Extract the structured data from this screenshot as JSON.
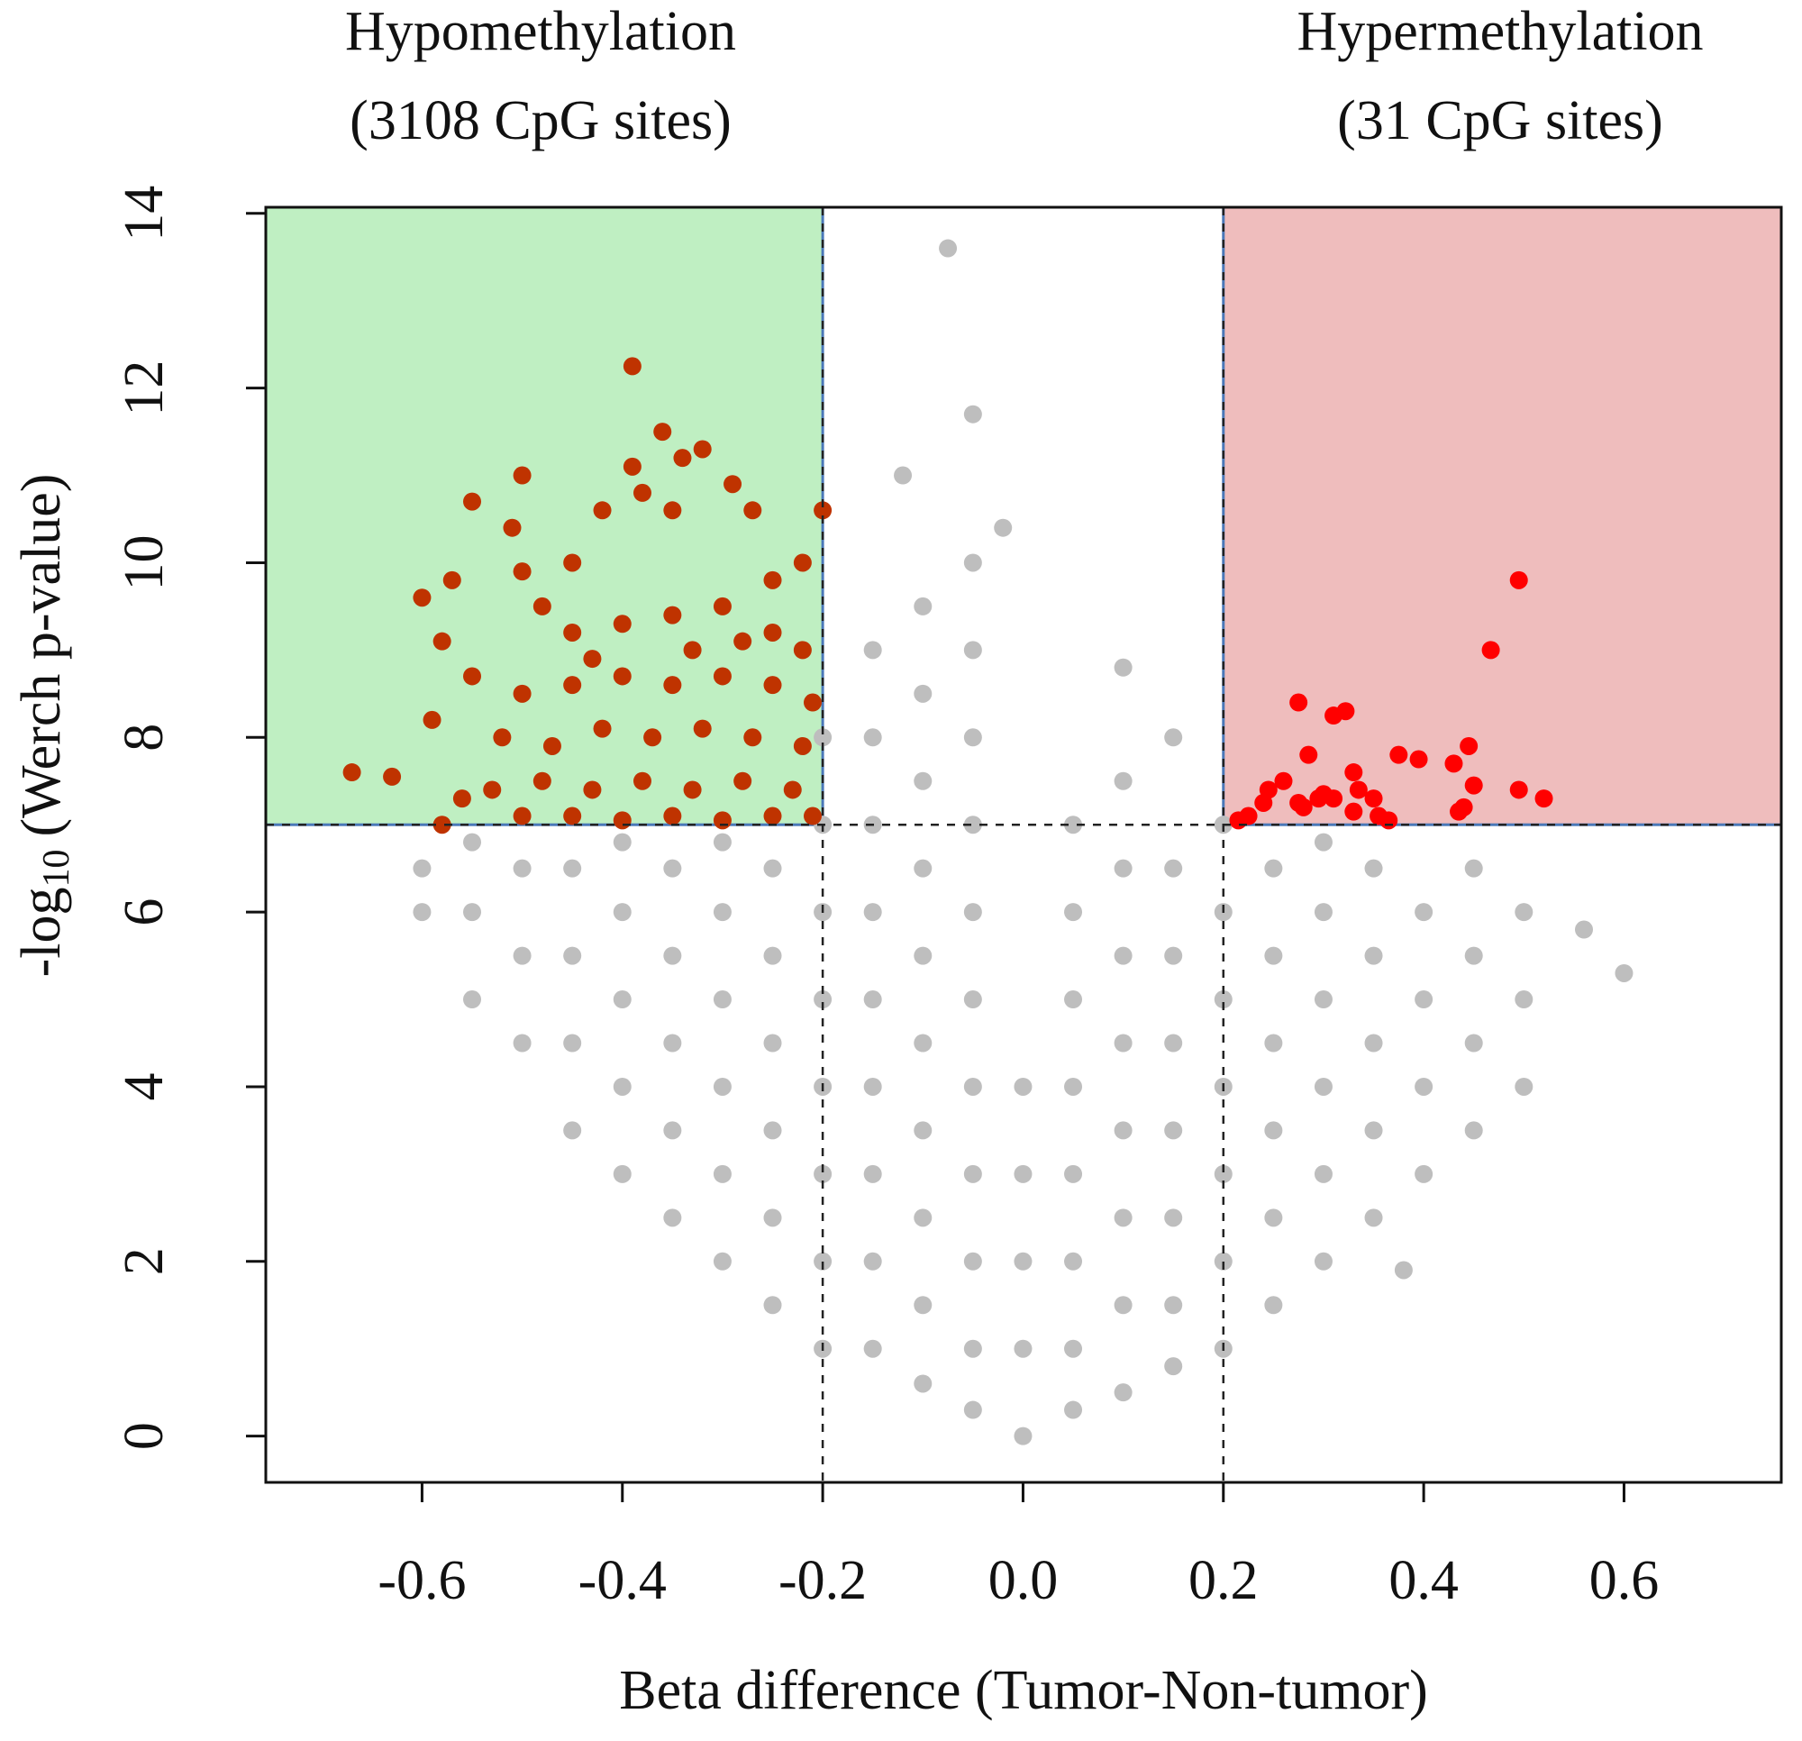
{
  "chart_data": {
    "type": "scatter",
    "annotations": [
      "Hypomethylation",
      "(3108 CpG sites)",
      "Hypermethylation",
      "(31 CpG sites)"
    ],
    "x_label": "Beta difference (Tumor-Non-tumor)",
    "y_label": [
      "-log",
      "10",
      "(Werch p-value)"
    ],
    "xlim": [
      -0.756,
      0.757
    ],
    "ylim": [
      -0.53,
      14.07
    ],
    "xticks": [
      -0.6,
      -0.4,
      -0.2,
      {
        "value": 0,
        "label": "0.0"
      },
      0.2,
      0.4,
      0.6
    ],
    "yticks": [
      0,
      2,
      4,
      6,
      8,
      10,
      12,
      14
    ],
    "thresholds": {
      "x": [
        -0.2,
        0.2
      ],
      "y": 7
    },
    "regions": [
      {
        "xlim": [
          -0.756,
          -0.2
        ],
        "ylim": [
          7,
          14.07
        ],
        "color": "#bfefc2"
      },
      {
        "xlim": [
          0.2,
          0.757
        ],
        "ylim": [
          7,
          14.07
        ],
        "color": "#efbdbd"
      }
    ],
    "region_edge_color": "#4a78b8",
    "series": [
      {
        "color": "#bebebe",
        "x": [
          -0.6,
          -0.6,
          -0.55,
          -0.55,
          -0.55,
          -0.5,
          -0.5,
          -0.5,
          -0.45,
          -0.45,
          -0.45,
          -0.45,
          -0.4,
          -0.4,
          -0.4,
          -0.4,
          -0.4,
          -0.35,
          -0.35,
          -0.35,
          -0.35,
          -0.35,
          -0.3,
          -0.3,
          -0.3,
          -0.3,
          -0.3,
          -0.3,
          -0.25,
          -0.25,
          -0.25,
          -0.25,
          -0.25,
          -0.25,
          -0.2,
          -0.2,
          -0.2,
          -0.2,
          -0.2,
          -0.2,
          -0.2,
          -0.2,
          -0.15,
          -0.15,
          -0.15,
          -0.15,
          -0.15,
          -0.15,
          -0.15,
          -0.15,
          -0.15,
          -0.1,
          -0.1,
          -0.1,
          -0.1,
          -0.1,
          -0.1,
          -0.1,
          -0.1,
          -0.1,
          -0.1,
          -0.05,
          -0.05,
          -0.05,
          -0.05,
          -0.05,
          -0.05,
          -0.05,
          -0.05,
          -0.05,
          -0.05,
          -0.05,
          0,
          0,
          0,
          0,
          0,
          0.05,
          0.05,
          0.05,
          0.05,
          0.05,
          0.05,
          0.05,
          0.05,
          0.1,
          0.1,
          0.1,
          0.1,
          0.1,
          0.1,
          0.1,
          0.1,
          0.15,
          0.15,
          0.15,
          0.15,
          0.15,
          0.15,
          0.15,
          0.15,
          0.2,
          0.2,
          0.2,
          0.2,
          0.2,
          0.2,
          0.2,
          0.25,
          0.25,
          0.25,
          0.25,
          0.25,
          0.25,
          0.3,
          0.3,
          0.3,
          0.3,
          0.3,
          0.3,
          0.35,
          0.35,
          0.35,
          0.35,
          0.35,
          0.4,
          0.4,
          0.4,
          0.4,
          0.45,
          0.45,
          0.45,
          0.45,
          0.5,
          0.5,
          0.5,
          -0.075,
          -0.05,
          -0.12,
          -0.02,
          0.6,
          0.56,
          0.38,
          0.1
        ],
        "values": [
          6,
          6.5,
          5,
          6,
          6.8,
          4.5,
          5.5,
          6.5,
          3.5,
          4.5,
          5.5,
          6.5,
          3,
          4,
          5,
          6,
          6.8,
          2.5,
          3.5,
          4.5,
          5.5,
          6.5,
          2,
          3,
          4,
          5,
          6,
          6.8,
          1.5,
          2.5,
          3.5,
          4.5,
          5.5,
          6.5,
          1,
          2,
          3,
          4,
          5,
          6,
          7,
          8,
          1,
          2,
          3,
          4,
          5,
          6,
          7,
          8,
          9,
          0.6,
          1.5,
          2.5,
          3.5,
          4.5,
          5.5,
          6.5,
          7.5,
          8.5,
          9.5,
          0.3,
          1,
          2,
          3,
          4,
          5,
          6,
          7,
          8,
          9,
          10,
          0,
          1,
          2,
          3,
          4,
          0.3,
          1,
          2,
          3,
          4,
          5,
          6,
          7,
          0.5,
          1.5,
          2.5,
          3.5,
          4.5,
          5.5,
          6.5,
          7.5,
          0.8,
          1.5,
          2.5,
          3.5,
          4.5,
          5.5,
          6.5,
          8,
          1,
          2,
          3,
          4,
          5,
          6,
          7,
          1.5,
          2.5,
          3.5,
          4.5,
          5.5,
          6.5,
          2,
          3,
          4,
          5,
          6,
          6.8,
          2.5,
          3.5,
          4.5,
          5.5,
          6.5,
          3,
          4,
          5,
          6,
          3.5,
          4.5,
          5.5,
          6.5,
          4,
          5,
          6,
          13.6,
          11.7,
          11,
          10.4,
          5.3,
          5.8,
          1.9,
          8.8
        ]
      },
      {
        "color": "#bf3300",
        "x": [
          -0.39,
          -0.36,
          -0.34,
          -0.32,
          -0.39,
          -0.5,
          -0.55,
          -0.38,
          -0.29,
          -0.2,
          -0.35,
          -0.42,
          -0.51,
          -0.27,
          -0.22,
          -0.5,
          -0.6,
          -0.57,
          -0.45,
          -0.25,
          -0.58,
          -0.55,
          -0.59,
          -0.67,
          -0.63,
          -0.56,
          -0.58,
          -0.48,
          -0.45,
          -0.4,
          -0.35,
          -0.3,
          -0.25,
          -0.22,
          -0.5,
          -0.45,
          -0.4,
          -0.35,
          -0.3,
          -0.25,
          -0.21,
          -0.52,
          -0.47,
          -0.42,
          -0.37,
          -0.32,
          -0.27,
          -0.22,
          -0.53,
          -0.48,
          -0.43,
          -0.38,
          -0.33,
          -0.28,
          -0.23,
          -0.5,
          -0.45,
          -0.4,
          -0.35,
          -0.3,
          -0.25,
          -0.21,
          -0.43,
          -0.33,
          -0.28
        ],
        "values": [
          12.25,
          11.5,
          11.2,
          11.3,
          11.1,
          11,
          10.7,
          10.8,
          10.9,
          10.6,
          10.6,
          10.6,
          10.4,
          10.6,
          10,
          9.9,
          9.6,
          9.8,
          10,
          9.8,
          9.1,
          8.7,
          8.2,
          7.6,
          7.55,
          7.3,
          7,
          9.5,
          9.2,
          9.3,
          9.4,
          9.5,
          9.2,
          9,
          8.5,
          8.6,
          8.7,
          8.6,
          8.7,
          8.6,
          8.4,
          8,
          7.9,
          8.1,
          8,
          8.1,
          8,
          7.9,
          7.4,
          7.5,
          7.4,
          7.5,
          7.4,
          7.5,
          7.4,
          7.1,
          7.1,
          7.05,
          7.1,
          7.05,
          7.1,
          7.1,
          8.9,
          9,
          9.1
        ]
      },
      {
        "color": "#ff0000",
        "x": [
          0.495,
          0.467,
          0.275,
          0.31,
          0.322,
          0.285,
          0.375,
          0.395,
          0.43,
          0.445,
          0.33,
          0.335,
          0.26,
          0.245,
          0.24,
          0.28,
          0.295,
          0.3,
          0.35,
          0.33,
          0.355,
          0.365,
          0.225,
          0.215,
          0.44,
          0.45,
          0.435,
          0.495,
          0.52,
          0.275,
          0.31
        ],
        "values": [
          9.8,
          9,
          8.4,
          8.25,
          8.3,
          7.8,
          7.8,
          7.75,
          7.7,
          7.9,
          7.6,
          7.4,
          7.5,
          7.4,
          7.25,
          7.2,
          7.3,
          7.35,
          7.3,
          7.15,
          7.1,
          7.05,
          7.1,
          7.05,
          7.2,
          7.45,
          7.15,
          7.4,
          7.3,
          7.25,
          7.3
        ]
      }
    ]
  }
}
